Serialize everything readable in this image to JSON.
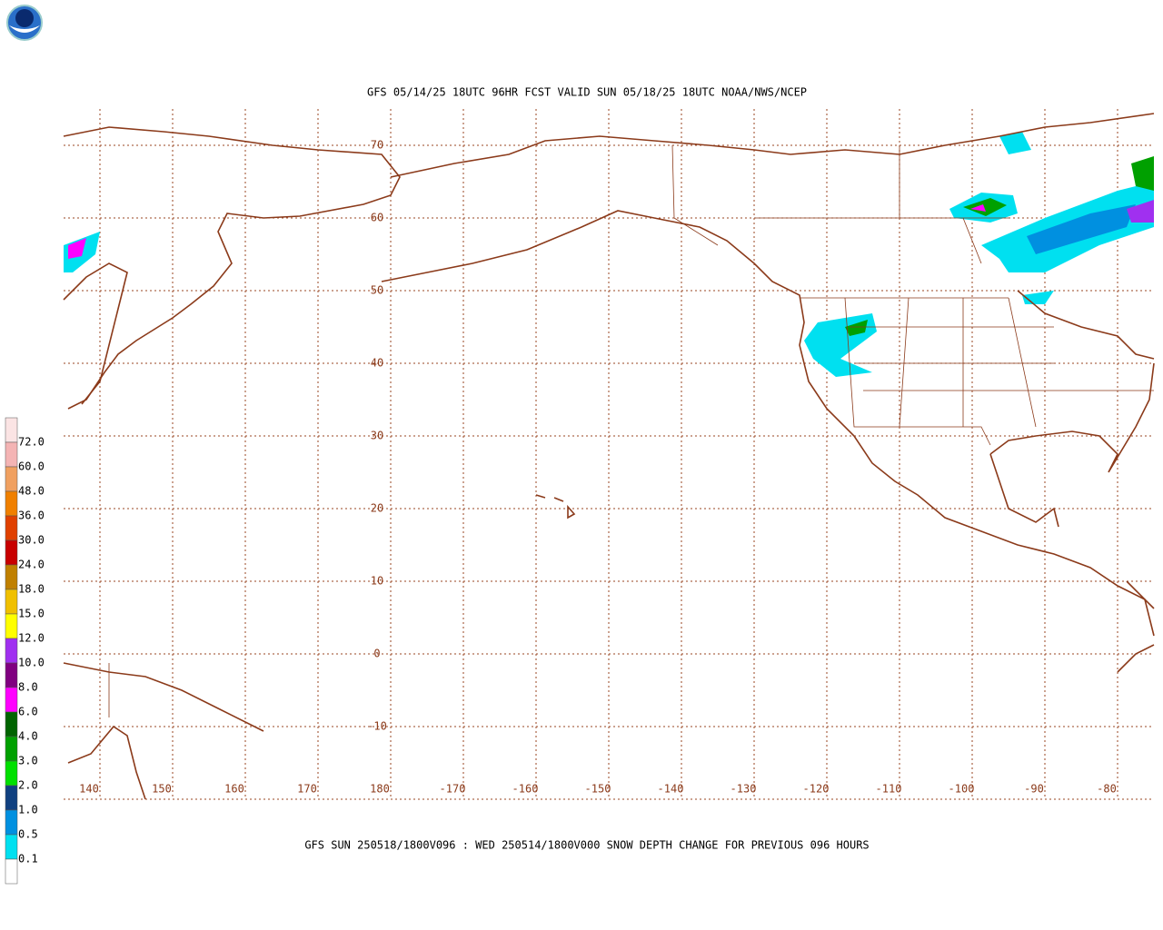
{
  "header": {
    "title": "GFS 05/14/25 18UTC 96HR FCST VALID SUN 05/18/25 18UTC NOAA/NWS/NCEP"
  },
  "map": {
    "lat_labels": [
      "70",
      "60",
      "50",
      "40",
      "30",
      "20",
      "10",
      "0",
      "-10"
    ],
    "lon_labels": [
      "140",
      "150",
      "160",
      "170",
      "180",
      "-170",
      "-160",
      "-150",
      "-140",
      "-130",
      "-120",
      "-110",
      "-100",
      "-90",
      "-80"
    ]
  },
  "legend": {
    "items": [
      {
        "label": "72.0",
        "color": "#fbe4e4"
      },
      {
        "label": "60.0",
        "color": "#f4b4b4"
      },
      {
        "label": "48.0",
        "color": "#f0a060"
      },
      {
        "label": "36.0",
        "color": "#f08000"
      },
      {
        "label": "30.0",
        "color": "#e04000"
      },
      {
        "label": "24.0",
        "color": "#c80000"
      },
      {
        "label": "18.0",
        "color": "#c08000"
      },
      {
        "label": "15.0",
        "color": "#f0c000"
      },
      {
        "label": "12.0",
        "color": "#ffff00"
      },
      {
        "label": "10.0",
        "color": "#a030f0"
      },
      {
        "label": "8.0",
        "color": "#800080"
      },
      {
        "label": "6.0",
        "color": "#ff00ff"
      },
      {
        "label": "4.0",
        "color": "#006400"
      },
      {
        "label": "3.0",
        "color": "#00a000"
      },
      {
        "label": "2.0",
        "color": "#00e000"
      },
      {
        "label": "1.0",
        "color": "#104080"
      },
      {
        "label": "0.5",
        "color": "#0090e0"
      },
      {
        "label": "0.1",
        "color": "#00e0f0"
      }
    ],
    "bottom_color": "#ffffff"
  },
  "footer": "GFS SUN 250518/1800V096 : WED 250514/1800V000 SNOW DEPTH CHANGE FOR PREVIOUS 096 HOURS"
}
